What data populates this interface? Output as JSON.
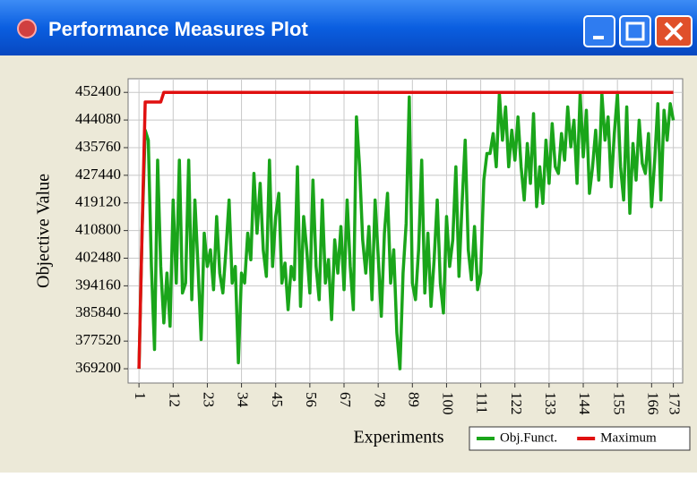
{
  "window": {
    "title": "Performance Measures Plot"
  },
  "chart_data": {
    "type": "line",
    "xlabel": "Experiments",
    "ylabel": "Objective Value",
    "x": [
      1,
      2,
      3,
      4,
      5,
      6,
      7,
      8,
      9,
      10,
      11,
      12,
      13,
      14,
      15,
      16,
      17,
      18,
      19,
      20,
      21,
      22,
      23,
      24,
      25,
      26,
      27,
      28,
      29,
      30,
      31,
      32,
      33,
      34,
      35,
      36,
      37,
      38,
      39,
      40,
      41,
      42,
      43,
      44,
      45,
      46,
      47,
      48,
      49,
      50,
      51,
      52,
      53,
      54,
      55,
      56,
      57,
      58,
      59,
      60,
      61,
      62,
      63,
      64,
      65,
      66,
      67,
      68,
      69,
      70,
      71,
      72,
      73,
      74,
      75,
      76,
      77,
      78,
      79,
      80,
      81,
      82,
      83,
      84,
      85,
      86,
      87,
      88,
      89,
      90,
      91,
      92,
      93,
      94,
      95,
      96,
      97,
      98,
      99,
      100,
      101,
      102,
      103,
      104,
      105,
      106,
      107,
      108,
      109,
      110,
      111,
      112,
      113,
      114,
      115,
      116,
      117,
      118,
      119,
      120,
      121,
      122,
      123,
      124,
      125,
      126,
      127,
      128,
      129,
      130,
      131,
      132,
      133,
      134,
      135,
      136,
      137,
      138,
      139,
      140,
      141,
      142,
      143,
      144,
      145,
      146,
      147,
      148,
      149,
      150,
      151,
      152,
      153,
      154,
      155,
      156,
      157,
      158,
      159,
      160,
      161,
      162,
      163,
      164,
      165,
      166,
      167,
      168,
      169,
      170,
      171,
      172,
      173
    ],
    "series": [
      {
        "name": "Obj.Funct.",
        "color": "#1aa51a",
        "values": [
          369200,
          410800,
          441000,
          438000,
          400000,
          375000,
          432000,
          400000,
          383000,
          398000,
          382000,
          420000,
          395000,
          432000,
          392000,
          395000,
          432000,
          390000,
          420000,
          400000,
          378000,
          410000,
          400000,
          405000,
          393000,
          415000,
          398000,
          392000,
          405000,
          420000,
          395000,
          400000,
          371000,
          398000,
          395000,
          410000,
          402000,
          428000,
          410000,
          425000,
          405000,
          397000,
          432000,
          400000,
          415000,
          422000,
          395000,
          401000,
          387000,
          400000,
          396000,
          430000,
          388000,
          415000,
          405000,
          392000,
          426000,
          400000,
          390000,
          420000,
          395000,
          402000,
          384000,
          408000,
          398000,
          412000,
          393000,
          420000,
          400000,
          387000,
          445000,
          430000,
          408000,
          398000,
          412000,
          390000,
          420000,
          403000,
          385000,
          410000,
          422000,
          395000,
          405000,
          380000,
          369200,
          398000,
          413000,
          451000,
          395000,
          390000,
          405000,
          432000,
          392000,
          410000,
          388000,
          402000,
          420000,
          395000,
          386000,
          415000,
          400000,
          408000,
          430000,
          397000,
          419000,
          438000,
          405000,
          396000,
          412000,
          393000,
          398000,
          426000,
          434000,
          434000,
          440000,
          430000,
          452000,
          438000,
          448000,
          430000,
          441000,
          432000,
          445000,
          430000,
          420000,
          437000,
          425000,
          446000,
          418000,
          430000,
          419000,
          438000,
          425000,
          443000,
          430000,
          428000,
          440000,
          432000,
          448000,
          436000,
          444000,
          425000,
          452000,
          433000,
          447000,
          422000,
          430000,
          441000,
          426000,
          452000,
          438000,
          445000,
          424000,
          440000,
          452000,
          430000,
          420000,
          448000,
          416000,
          437000,
          426000,
          444000,
          431000,
          428000,
          440000,
          418000,
          432000,
          449000,
          420000,
          447000,
          438000,
          449000,
          444000
        ]
      },
      {
        "name": "Maximum",
        "color": "#e01010",
        "values": [
          369200,
          410800,
          449500,
          449500,
          449500,
          449500,
          449500,
          449500,
          452400,
          452400,
          452400,
          452400,
          452400,
          452400,
          452400,
          452400,
          452400,
          452400,
          452400,
          452400,
          452400,
          452400,
          452400,
          452400,
          452400,
          452400,
          452400,
          452400,
          452400,
          452400,
          452400,
          452400,
          452400,
          452400,
          452400,
          452400,
          452400,
          452400,
          452400,
          452400,
          452400,
          452400,
          452400,
          452400,
          452400,
          452400,
          452400,
          452400,
          452400,
          452400,
          452400,
          452400,
          452400,
          452400,
          452400,
          452400,
          452400,
          452400,
          452400,
          452400,
          452400,
          452400,
          452400,
          452400,
          452400,
          452400,
          452400,
          452400,
          452400,
          452400,
          452400,
          452400,
          452400,
          452400,
          452400,
          452400,
          452400,
          452400,
          452400,
          452400,
          452400,
          452400,
          452400,
          452400,
          452400,
          452400,
          452400,
          452400,
          452400,
          452400,
          452400,
          452400,
          452400,
          452400,
          452400,
          452400,
          452400,
          452400,
          452400,
          452400,
          452400,
          452400,
          452400,
          452400,
          452400,
          452400,
          452400,
          452400,
          452400,
          452400,
          452400,
          452400,
          452400,
          452400,
          452400,
          452400,
          452400,
          452400,
          452400,
          452400,
          452400,
          452400,
          452400,
          452400,
          452400,
          452400,
          452400,
          452400,
          452400,
          452400,
          452400,
          452400,
          452400,
          452400,
          452400,
          452400,
          452400,
          452400,
          452400,
          452400,
          452400,
          452400,
          452400,
          452400,
          452400,
          452400,
          452400,
          452400,
          452400,
          452400,
          452400,
          452400,
          452400,
          452400,
          452400,
          452400,
          452400,
          452400,
          452400,
          452400,
          452400,
          452400,
          452400,
          452400,
          452400,
          452400,
          452400,
          452400,
          452400,
          452400,
          452400,
          452400,
          452400
        ]
      }
    ],
    "xlim": [
      -2.5,
      176
    ],
    "xticks": [
      1,
      12,
      23,
      34,
      45,
      56,
      67,
      78,
      89,
      100,
      111,
      122,
      133,
      144,
      155,
      166,
      173
    ],
    "ylim": [
      364900,
      456500
    ],
    "yticks": [
      369200,
      377520,
      385840,
      394160,
      402480,
      410800,
      419120,
      427440,
      435760,
      444080,
      452400
    ],
    "grid": true,
    "legend": "lower right"
  }
}
